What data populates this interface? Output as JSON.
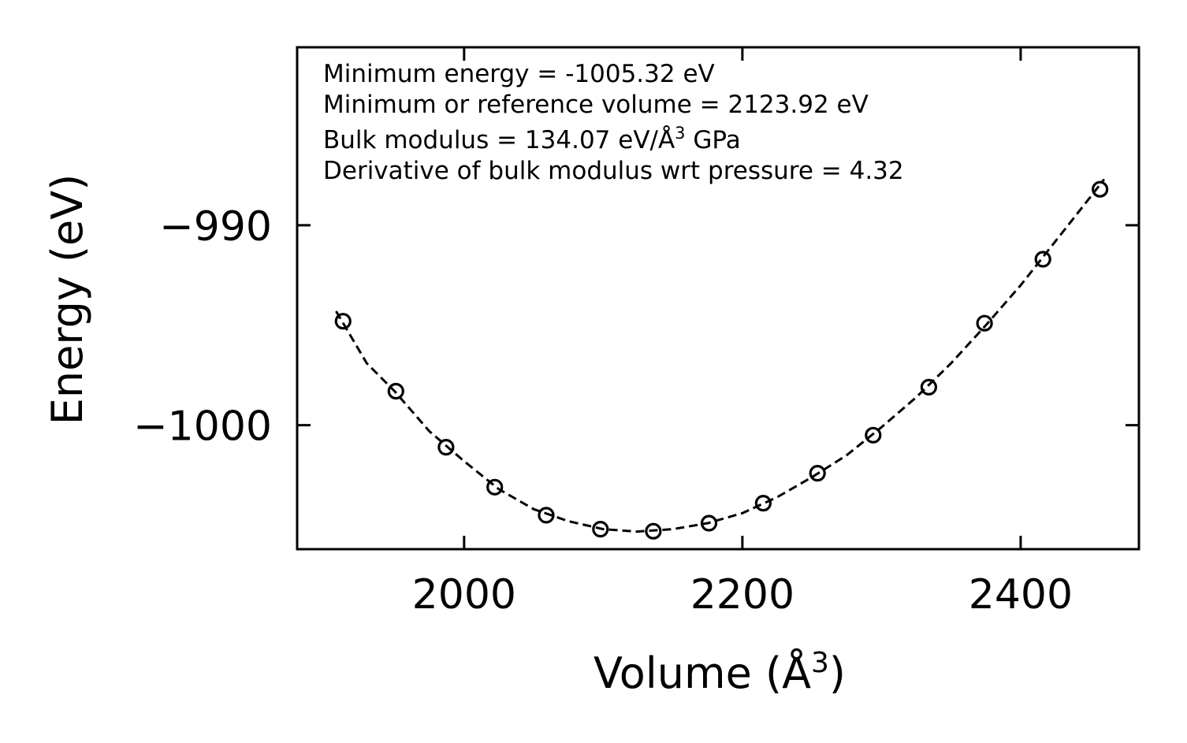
{
  "chart_data": {
    "type": "scatter",
    "xlabel": "Volume (Å",
    "xlabel_sup": "3",
    "xlabel_close": ")",
    "ylabel": "Energy (eV)",
    "xlim": [
      1880,
      2485
    ],
    "ylim": [
      -1006.2,
      -981.1
    ],
    "xticks": [
      2000,
      2200,
      2400
    ],
    "xtick_labels": [
      "2000",
      "2200",
      "2400"
    ],
    "yticks": [
      -990,
      -1000
    ],
    "ytick_labels": [
      "−990",
      "−1000"
    ],
    "series": [
      {
        "name": "data",
        "style": "open-circle",
        "x": [
          1913,
          1951,
          1987,
          2022,
          2059,
          2098,
          2136,
          2176,
          2215,
          2254,
          2294,
          2334,
          2374,
          2416,
          2457
        ],
        "y": [
          -994.8,
          -998.3,
          -1001.1,
          -1003.1,
          -1004.5,
          -1005.2,
          -1005.3,
          -1004.9,
          -1003.9,
          -1002.4,
          -1000.5,
          -998.1,
          -994.9,
          -991.7,
          -988.2
        ]
      },
      {
        "name": "fit",
        "style": "dashed-line",
        "x": [
          1908,
          1930,
          1950,
          1975,
          2000,
          2025,
          2050,
          2075,
          2100,
          2124,
          2150,
          2175,
          2200,
          2225,
          2250,
          2275,
          2300,
          2325,
          2350,
          2375,
          2400,
          2425,
          2450,
          2460
        ],
        "y": [
          -994.3,
          -996.9,
          -998.3,
          -1000.3,
          -1001.8,
          -1003.2,
          -1004.2,
          -1004.8,
          -1005.2,
          -1005.32,
          -1005.2,
          -1004.9,
          -1004.4,
          -1003.6,
          -1002.6,
          -1001.5,
          -1000.1,
          -998.6,
          -996.9,
          -995.0,
          -993.0,
          -990.8,
          -988.6,
          -987.7
        ]
      }
    ],
    "annotations": {
      "line1": "Minimum energy = -1005.32 eV",
      "line2": "Minimum or reference volume = 2123.92 eV",
      "line3_pre": "Bulk modulus = 134.07 eV/Å",
      "line3_sup": "3",
      "line3_post": " GPa",
      "line4": "Derivative of bulk modulus wrt pressure = 4.32"
    }
  }
}
